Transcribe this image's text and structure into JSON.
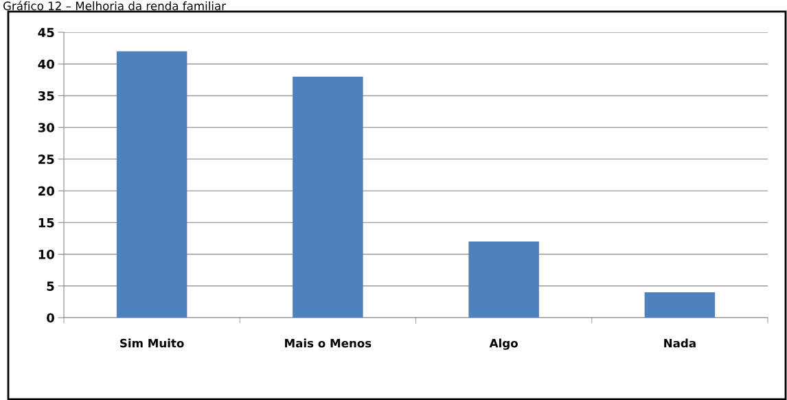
{
  "chart_data": {
    "type": "bar",
    "title": "Gráfico 12 – Melhoria da renda familiar",
    "categories": [
      "Sim Muito",
      "Mais o Menos",
      "Algo",
      "Nada"
    ],
    "values": [
      42,
      38,
      12,
      4
    ],
    "color": "#4f81bd",
    "ylim": [
      0,
      45
    ],
    "yticks": [
      0,
      5,
      10,
      15,
      20,
      25,
      30,
      35,
      40,
      45
    ],
    "grid": "y",
    "legend": false
  }
}
